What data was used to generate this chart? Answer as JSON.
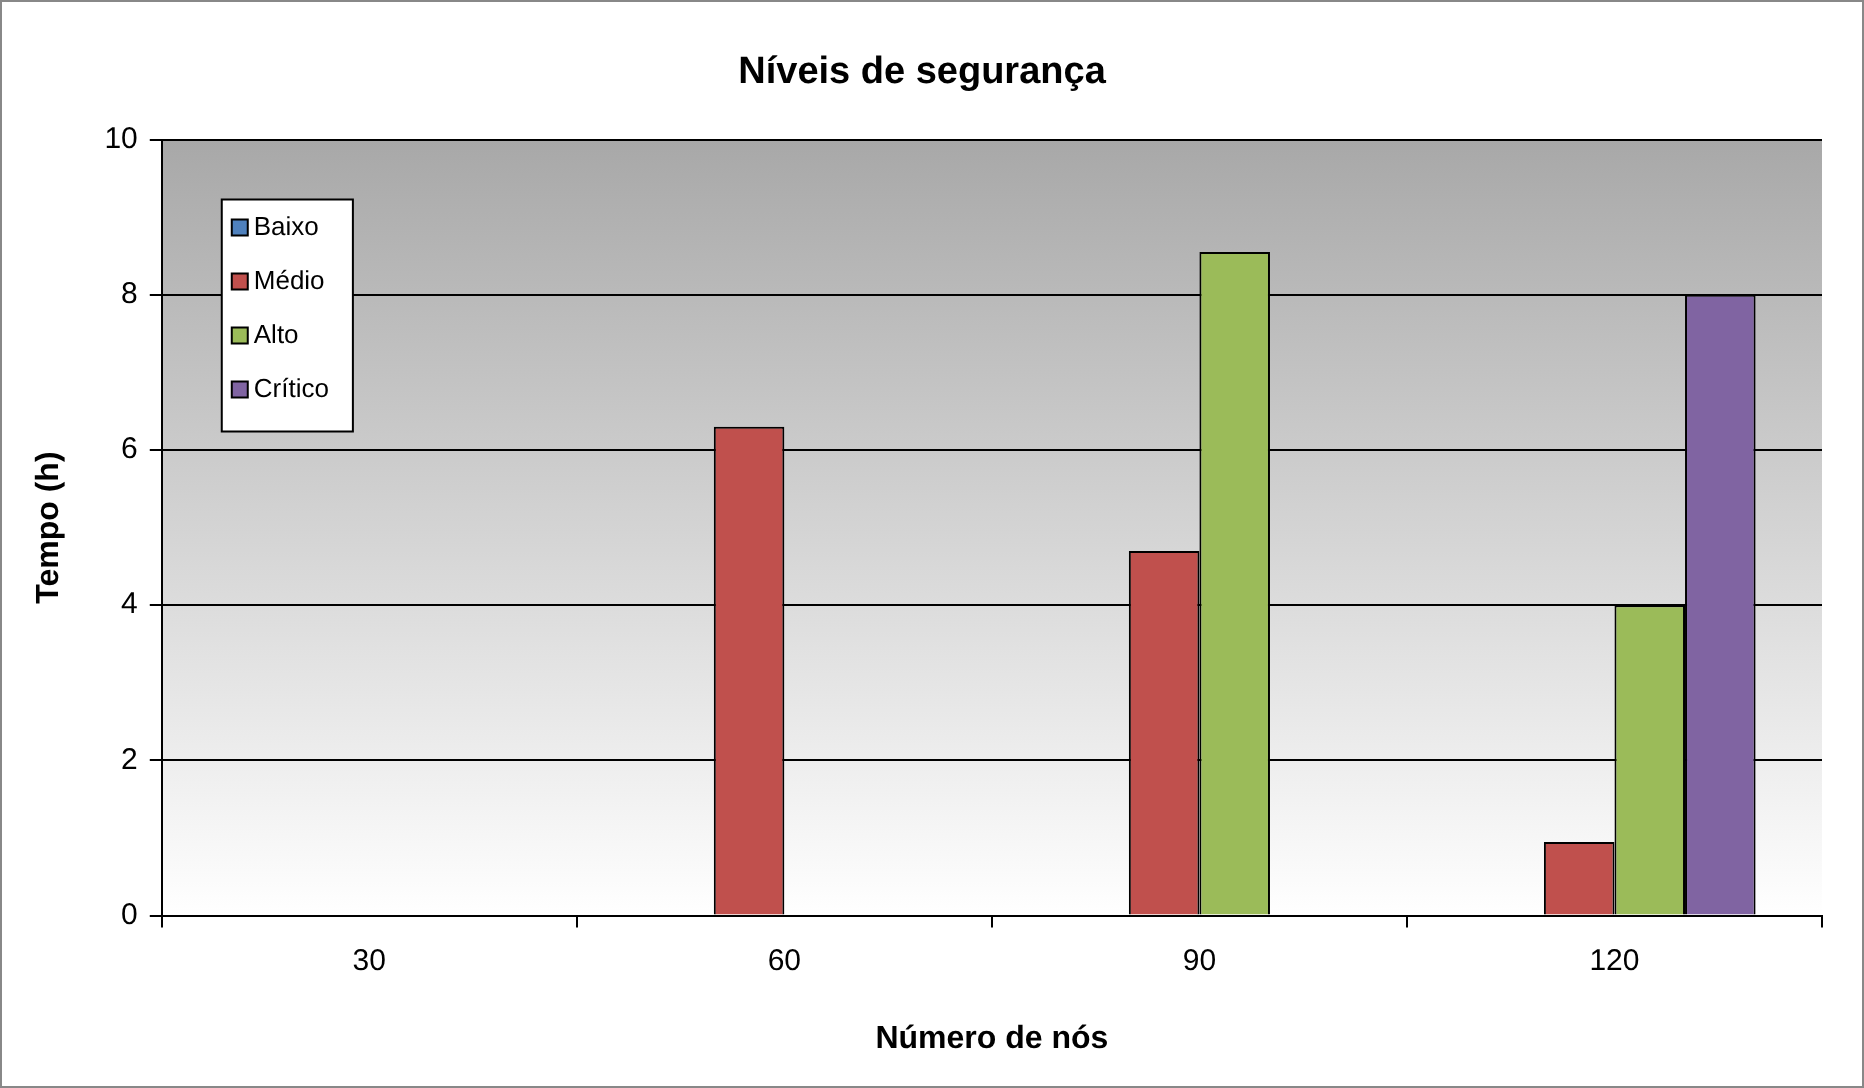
{
  "chart_data": {
    "type": "bar",
    "title": "Níveis de segurança",
    "xlabel": "Número de nós",
    "ylabel": "Tempo (h)",
    "categories": [
      "30",
      "60",
      "90",
      "120"
    ],
    "series": [
      {
        "name": "Baixo",
        "color": "#4f81bd",
        "values": [
          null,
          null,
          null,
          null
        ]
      },
      {
        "name": "Médio",
        "color": "#c0504d",
        "values": [
          null,
          6.3,
          4.7,
          0.95
        ]
      },
      {
        "name": "Alto",
        "color": "#9bbb59",
        "values": [
          null,
          null,
          8.55,
          4.0
        ]
      },
      {
        "name": "Crítico",
        "color": "#8064a2",
        "values": [
          null,
          null,
          null,
          8.0
        ]
      }
    ],
    "ylim": [
      0,
      10
    ],
    "yticks": [
      0,
      2,
      4,
      6,
      8,
      10
    ],
    "grid": "y",
    "legend": "top left"
  }
}
